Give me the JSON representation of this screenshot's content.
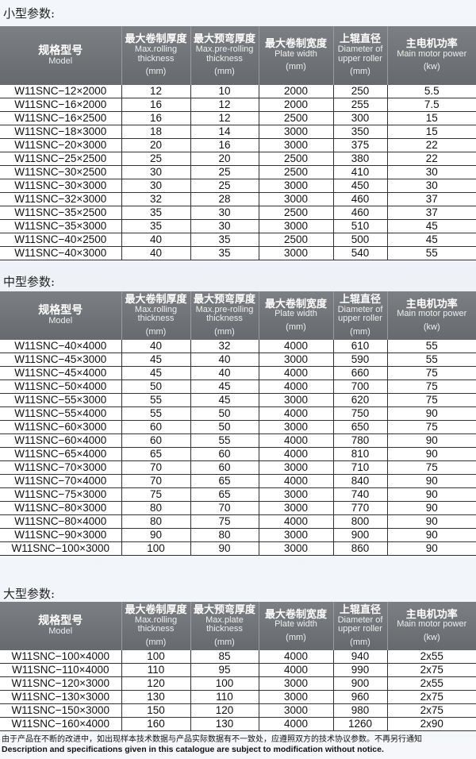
{
  "header": {
    "model_zh": "规格型号",
    "model_en": "Model",
    "c1_zh": "最大卷制厚度",
    "c1_en": "Max.rolling thickness",
    "c1_unit": "(mm)",
    "c2_zh": "最大预弯厚度",
    "c2_en": "Max.pre-rolling thickness",
    "c2_en_large": "Max.plate thickness",
    "c2_unit": "(mm)",
    "c3_zh": "最大卷制宽度",
    "c3_en": "Plate width",
    "c3_unit": "(mm)",
    "c4_zh": "上辊直径",
    "c4_en": "Diameter of upper roller",
    "c4_unit": "(mm)",
    "c5_zh": "主电机功率",
    "c5_en": "Main motor power",
    "c5_unit": "(kw)"
  },
  "tables": [
    {
      "title": "小型参数:",
      "rows": [
        [
          "W11SNC−12×2000",
          "12",
          "10",
          "2000",
          "250",
          "5.5"
        ],
        [
          "W11SNC−16×2000",
          "16",
          "12",
          "2000",
          "255",
          "7.5"
        ],
        [
          "W11SNC−16×2500",
          "16",
          "12",
          "2500",
          "300",
          "15"
        ],
        [
          "W11SNC−18×3000",
          "18",
          "14",
          "3000",
          "350",
          "15"
        ],
        [
          "W11SNC−20×3000",
          "20",
          "16",
          "3000",
          "375",
          "22"
        ],
        [
          "W11SNC−25×2500",
          "25",
          "20",
          "2500",
          "380",
          "22"
        ],
        [
          "W11SNC−30×2500",
          "30",
          "25",
          "2500",
          "410",
          "30"
        ],
        [
          "W11SNC−30×3000",
          "30",
          "25",
          "3000",
          "450",
          "30"
        ],
        [
          "W11SNC−32×3000",
          "32",
          "28",
          "3000",
          "460",
          "37"
        ],
        [
          "W11SNC−35×2500",
          "35",
          "30",
          "2500",
          "460",
          "37"
        ],
        [
          "W11SNC−35×3000",
          "35",
          "30",
          "3000",
          "510",
          "45"
        ],
        [
          "W11SNC−40×2500",
          "40",
          "35",
          "2500",
          "500",
          "45"
        ],
        [
          "W11SNC−40×3000",
          "40",
          "35",
          "3000",
          "540",
          "55"
        ]
      ]
    },
    {
      "title": "中型参数:",
      "rows": [
        [
          "W11SNC−40×4000",
          "40",
          "32",
          "4000",
          "610",
          "55"
        ],
        [
          "W11SNC−45×3000",
          "45",
          "40",
          "3000",
          "590",
          "55"
        ],
        [
          "W11SNC−45×4000",
          "45",
          "40",
          "4000",
          "660",
          "75"
        ],
        [
          "W11SNC−50×4000",
          "50",
          "45",
          "4000",
          "700",
          "75"
        ],
        [
          "W11SNC−55×3000",
          "55",
          "45",
          "3000",
          "620",
          "75"
        ],
        [
          "W11SNC−55×4000",
          "55",
          "50",
          "4000",
          "750",
          "90"
        ],
        [
          "W11SNC−60×3000",
          "60",
          "50",
          "3000",
          "650",
          "75"
        ],
        [
          "W11SNC−60×4000",
          "60",
          "55",
          "4000",
          "780",
          "90"
        ],
        [
          "W11SNC−65×4000",
          "65",
          "60",
          "4000",
          "810",
          "90"
        ],
        [
          "W11SNC−70×3000",
          "70",
          "60",
          "3000",
          "710",
          "75"
        ],
        [
          "W11SNC−70×4000",
          "70",
          "65",
          "4000",
          "840",
          "90"
        ],
        [
          "W11SNC−75×3000",
          "75",
          "65",
          "3000",
          "740",
          "90"
        ],
        [
          "W11SNC−80×3000",
          "80",
          "70",
          "3000",
          "770",
          "90"
        ],
        [
          "W11SNC−80×4000",
          "80",
          "75",
          "4000",
          "800",
          "90"
        ],
        [
          "W11SNC−90×3000",
          "90",
          "80",
          "3000",
          "900",
          "90"
        ],
        [
          "W11SNC−100×3000",
          "100",
          "90",
          "3000",
          "860",
          "90"
        ]
      ]
    },
    {
      "title": "大型参数:",
      "rows": [
        [
          "W11SNC−100×4000",
          "100",
          "85",
          "4000",
          "940",
          "2x55"
        ],
        [
          "W11SNC−110×4000",
          "110",
          "95",
          "4000",
          "990",
          "2x75"
        ],
        [
          "W11SNC−120×3000",
          "120",
          "100",
          "3000",
          "900",
          "2x55"
        ],
        [
          "W11SNC−130×3000",
          "130",
          "110",
          "3000",
          "960",
          "2x75"
        ],
        [
          "W11SNC−150×3000",
          "150",
          "120",
          "3000",
          "980",
          "2x75"
        ],
        [
          "W11SNC−160×4000",
          "160",
          "130",
          "4000",
          "1260",
          "2x90"
        ]
      ]
    }
  ],
  "footer": {
    "zh": "由于产品在不断的改进中，如出现样本技术数据与产品实际数据有不一致处，应遵照双方的技术协议参数。不再另行通知",
    "en": "Description and specifications given in this catalogue are subject to modification without notice."
  }
}
